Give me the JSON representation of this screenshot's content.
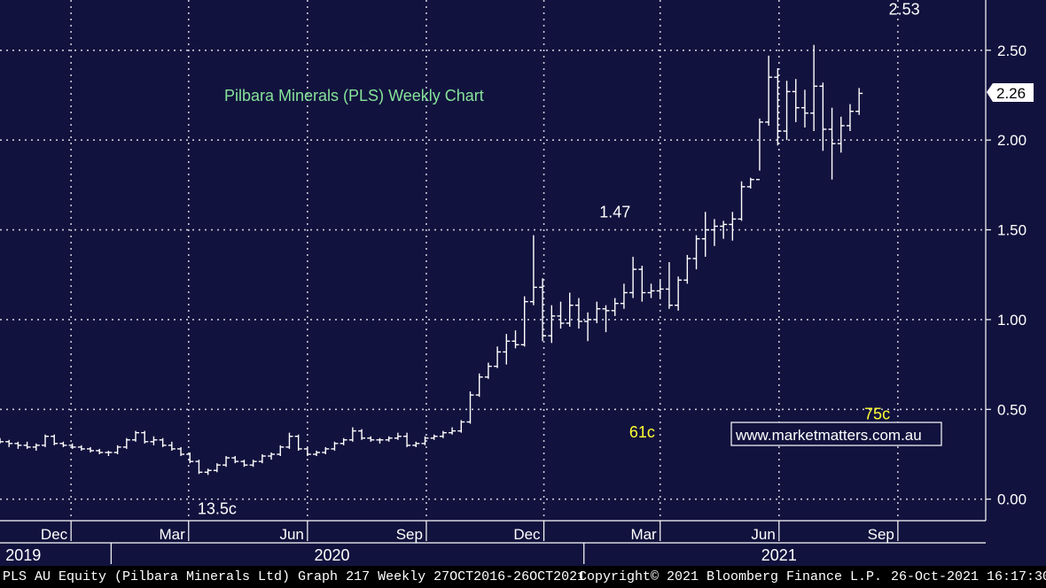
{
  "footer": {
    "left": "PLS AU Equity (Pilbara Minerals Ltd) Graph 217  Weekly 27OCT2016-26OCT2021",
    "copyright": "Copyright© 2021 Bloomberg Finance L.P.",
    "timestamp": "26-Oct-2021 16:17:30"
  },
  "colors": {
    "background": "#12123e",
    "title": "#86e39a",
    "annotation_yellow": "#ffff33",
    "bars": "#ffffff"
  },
  "chart_data": {
    "type": "bar",
    "subtype": "weekly OHLC",
    "title": "Pilbara Minerals (PLS) Weekly Chart",
    "watermark": "www.marketmatters.com.au",
    "y_ticks": [
      "0.00",
      "0.50",
      "1.00",
      "1.50",
      "2.00",
      "2.50"
    ],
    "ylim": [
      -0.12,
      2.78
    ],
    "last_price": "2.26",
    "grid": true,
    "x_axis": {
      "months": [
        {
          "label": "Dec",
          "date": "2019-12-01"
        },
        {
          "label": "Mar",
          "date": "2020-03-01"
        },
        {
          "label": "Jun",
          "date": "2020-06-01"
        },
        {
          "label": "Sep",
          "date": "2020-09-01"
        },
        {
          "label": "Dec",
          "date": "2020-12-01"
        },
        {
          "label": "Mar",
          "date": "2021-03-01"
        },
        {
          "label": "Jun",
          "date": "2021-06-01"
        },
        {
          "label": "Sep",
          "date": "2021-09-01"
        }
      ],
      "years": [
        {
          "label": "2019",
          "date": "2019-10-25"
        },
        {
          "label": "2020",
          "date": "2020-06-20"
        },
        {
          "label": "2021",
          "date": "2021-06-01"
        }
      ],
      "year_dividers": [
        "2020-01-01",
        "2021-01-01"
      ],
      "range": [
        "2019-10-07",
        "2021-11-08"
      ]
    },
    "annotations": [
      {
        "text": "2.53",
        "date": "2021-09-06",
        "value": 2.53,
        "color": "white"
      },
      {
        "text": "1.47",
        "date": "2021-01-25",
        "value": 1.47,
        "color": "white"
      },
      {
        "text": "61c",
        "date": "2021-02-15",
        "value": 0.61,
        "color": "yellow"
      },
      {
        "text": "13.5c",
        "date": "2020-03-23",
        "value": 0.135,
        "color": "white"
      },
      {
        "text": "75c",
        "date": "2021-08-16",
        "value": 0.75,
        "color": "yellow"
      }
    ],
    "start_week": "2019-10-07",
    "weeks": [
      [
        0.33,
        0.34,
        0.31,
        0.32
      ],
      [
        0.32,
        0.33,
        0.29,
        0.31
      ],
      [
        0.31,
        0.32,
        0.28,
        0.3
      ],
      [
        0.3,
        0.32,
        0.28,
        0.29
      ],
      [
        0.29,
        0.31,
        0.27,
        0.3
      ],
      [
        0.3,
        0.36,
        0.29,
        0.35
      ],
      [
        0.35,
        0.36,
        0.3,
        0.31
      ],
      [
        0.31,
        0.32,
        0.29,
        0.3
      ],
      [
        0.3,
        0.31,
        0.28,
        0.29
      ],
      [
        0.29,
        0.3,
        0.27,
        0.28
      ],
      [
        0.28,
        0.29,
        0.26,
        0.27
      ],
      [
        0.27,
        0.28,
        0.25,
        0.26
      ],
      [
        0.26,
        0.27,
        0.24,
        0.26
      ],
      [
        0.26,
        0.3,
        0.25,
        0.29
      ],
      [
        0.29,
        0.34,
        0.28,
        0.33
      ],
      [
        0.33,
        0.38,
        0.32,
        0.37
      ],
      [
        0.37,
        0.38,
        0.31,
        0.32
      ],
      [
        0.32,
        0.35,
        0.3,
        0.33
      ],
      [
        0.33,
        0.34,
        0.29,
        0.3
      ],
      [
        0.3,
        0.32,
        0.27,
        0.28
      ],
      [
        0.28,
        0.29,
        0.24,
        0.25
      ],
      [
        0.25,
        0.26,
        0.2,
        0.21
      ],
      [
        0.21,
        0.22,
        0.14,
        0.15
      ],
      [
        0.15,
        0.17,
        0.135,
        0.16
      ],
      [
        0.16,
        0.2,
        0.15,
        0.19
      ],
      [
        0.19,
        0.24,
        0.18,
        0.23
      ],
      [
        0.23,
        0.24,
        0.2,
        0.21
      ],
      [
        0.21,
        0.22,
        0.18,
        0.19
      ],
      [
        0.19,
        0.22,
        0.18,
        0.21
      ],
      [
        0.21,
        0.25,
        0.2,
        0.24
      ],
      [
        0.24,
        0.26,
        0.22,
        0.25
      ],
      [
        0.25,
        0.3,
        0.24,
        0.29
      ],
      [
        0.29,
        0.37,
        0.28,
        0.35
      ],
      [
        0.35,
        0.36,
        0.27,
        0.28
      ],
      [
        0.28,
        0.29,
        0.24,
        0.25
      ],
      [
        0.25,
        0.27,
        0.24,
        0.26
      ],
      [
        0.26,
        0.29,
        0.25,
        0.28
      ],
      [
        0.28,
        0.32,
        0.27,
        0.31
      ],
      [
        0.31,
        0.34,
        0.3,
        0.33
      ],
      [
        0.33,
        0.4,
        0.32,
        0.38
      ],
      [
        0.38,
        0.39,
        0.33,
        0.34
      ],
      [
        0.34,
        0.35,
        0.32,
        0.33
      ],
      [
        0.33,
        0.34,
        0.31,
        0.33
      ],
      [
        0.33,
        0.35,
        0.32,
        0.34
      ],
      [
        0.34,
        0.37,
        0.33,
        0.35
      ],
      [
        0.35,
        0.37,
        0.29,
        0.3
      ],
      [
        0.3,
        0.32,
        0.29,
        0.31
      ],
      [
        0.31,
        0.35,
        0.3,
        0.34
      ],
      [
        0.34,
        0.36,
        0.33,
        0.35
      ],
      [
        0.35,
        0.38,
        0.34,
        0.37
      ],
      [
        0.37,
        0.4,
        0.36,
        0.38
      ],
      [
        0.38,
        0.44,
        0.37,
        0.43
      ],
      [
        0.43,
        0.6,
        0.42,
        0.58
      ],
      [
        0.58,
        0.7,
        0.57,
        0.68
      ],
      [
        0.68,
        0.76,
        0.67,
        0.74
      ],
      [
        0.74,
        0.85,
        0.73,
        0.82
      ],
      [
        0.82,
        0.92,
        0.75,
        0.88
      ],
      [
        0.88,
        0.94,
        0.84,
        0.86
      ],
      [
        0.86,
        1.13,
        0.85,
        1.1
      ],
      [
        1.1,
        1.47,
        1.08,
        1.18
      ],
      [
        1.18,
        1.23,
        0.88,
        0.91
      ],
      [
        0.91,
        1.08,
        0.87,
        1.02
      ],
      [
        1.02,
        1.1,
        0.95,
        0.98
      ],
      [
        0.98,
        1.15,
        0.96,
        1.08
      ],
      [
        1.08,
        1.12,
        0.95,
        0.99
      ],
      [
        0.99,
        1.04,
        0.88,
        1.0
      ],
      [
        1.0,
        1.1,
        0.98,
        1.06
      ],
      [
        1.06,
        1.08,
        0.93,
        1.05
      ],
      [
        1.05,
        1.12,
        1.02,
        1.09
      ],
      [
        1.09,
        1.2,
        1.06,
        1.15
      ],
      [
        1.15,
        1.35,
        1.12,
        1.28
      ],
      [
        1.28,
        1.3,
        1.1,
        1.15
      ],
      [
        1.15,
        1.2,
        1.12,
        1.16
      ],
      [
        1.16,
        1.22,
        1.12,
        1.17
      ],
      [
        1.17,
        1.32,
        1.06,
        1.08
      ],
      [
        1.08,
        1.24,
        1.05,
        1.22
      ],
      [
        1.22,
        1.36,
        1.2,
        1.34
      ],
      [
        1.34,
        1.47,
        1.28,
        1.45
      ],
      [
        1.45,
        1.6,
        1.35,
        1.5
      ],
      [
        1.5,
        1.56,
        1.41,
        1.52
      ],
      [
        1.52,
        1.55,
        1.45,
        1.53
      ],
      [
        1.53,
        1.6,
        1.44,
        1.56
      ],
      [
        1.56,
        1.77,
        1.55,
        1.74
      ],
      [
        1.74,
        1.79,
        1.73,
        1.78
      ],
      [
        1.78,
        2.12,
        1.83,
        2.1
      ],
      [
        2.1,
        2.47,
        2.08,
        2.35
      ],
      [
        2.35,
        2.4,
        1.97,
        2.05
      ],
      [
        2.05,
        2.33,
        2.0,
        2.27
      ],
      [
        2.27,
        2.34,
        2.1,
        2.18
      ],
      [
        2.18,
        2.28,
        2.07,
        2.15
      ],
      [
        2.15,
        2.53,
        2.05,
        2.3
      ],
      [
        2.3,
        2.32,
        1.94,
        2.06
      ],
      [
        2.06,
        2.18,
        1.78,
        1.98
      ],
      [
        1.98,
        2.13,
        1.93,
        2.08
      ],
      [
        2.08,
        2.2,
        2.05,
        2.16
      ],
      [
        2.16,
        2.29,
        2.14,
        2.26
      ]
    ]
  }
}
